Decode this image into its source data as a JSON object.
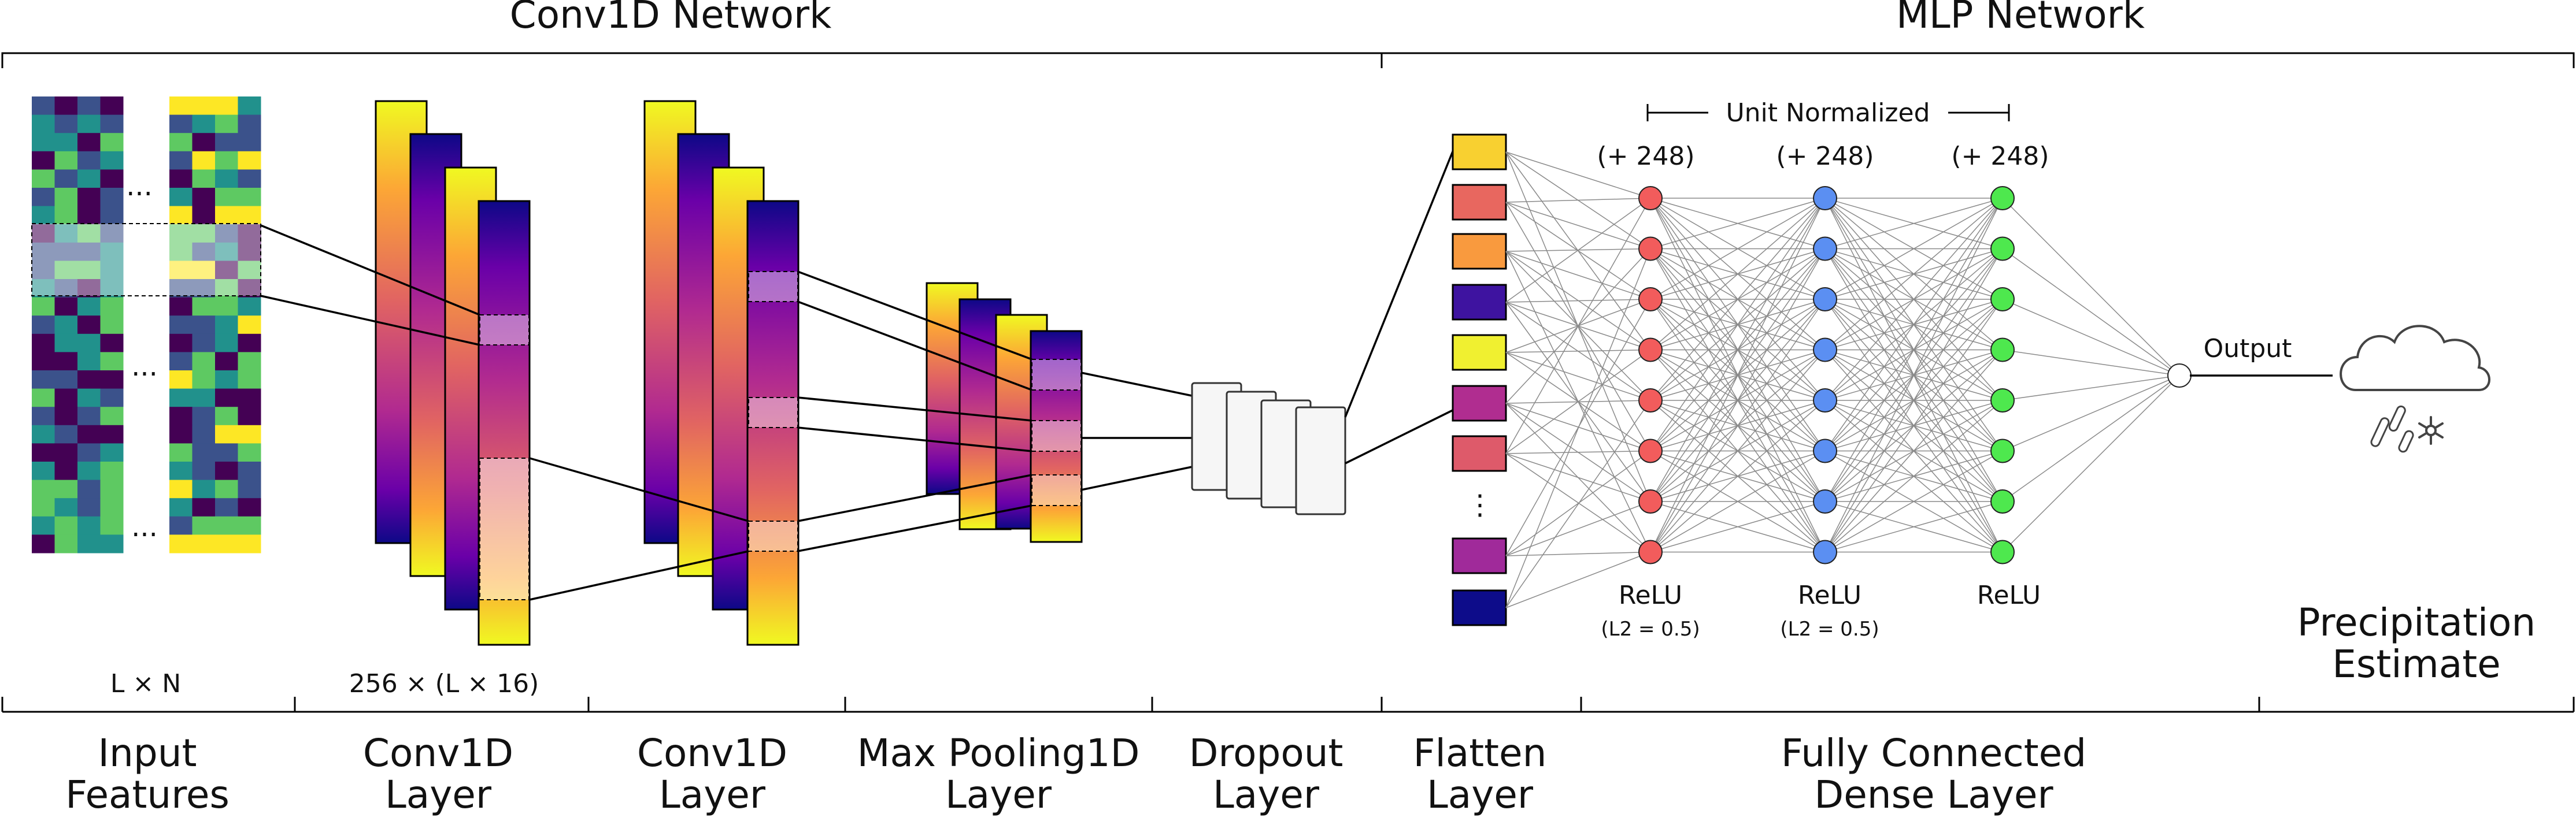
{
  "sections": {
    "conv": "Conv1D Network",
    "mlp": "MLP Network"
  },
  "input_dims": "L × N",
  "conv_dims": "256 × (L × 16)",
  "ellipsis": "...",
  "vdots": "⋮",
  "unit_normalized": "Unit Normalized",
  "dense_units": [
    "(+ 248)",
    "(+ 248)",
    "(+ 248)"
  ],
  "activations": [
    {
      "name": "ReLU",
      "reg": "(L2 = 0.5)"
    },
    {
      "name": "ReLU",
      "reg": "(L2 = 0.5)"
    },
    {
      "name": "ReLU",
      "reg": ""
    }
  ],
  "output_label": "Output",
  "result": {
    "line1": "Precipitation",
    "line2": "Estimate"
  },
  "layers": [
    {
      "line1": "Input",
      "line2": "Features"
    },
    {
      "line1": "Conv1D",
      "line2": "Layer"
    },
    {
      "line1": "Conv1D",
      "line2": "Layer"
    },
    {
      "line1": "Max Pooling1D",
      "line2": "Layer"
    },
    {
      "line1": "Dropout",
      "line2": "Layer"
    },
    {
      "line1": "Flatten",
      "line2": "Layer"
    },
    {
      "line1": "Fully Connected",
      "line2": "Dense Layer"
    }
  ],
  "colors": {
    "relu1": "#f25c5c",
    "relu2": "#5b8ff2",
    "relu3": "#4ee84e",
    "plasma": [
      "#0d0887",
      "#6a00a8",
      "#b12a90",
      "#e16462",
      "#fca636",
      "#f0f921"
    ],
    "flatten": [
      "#f8d030",
      "#e8675f",
      "#f99a3e",
      "#3e13a0",
      "#f0f030",
      "#b02d90",
      "#de5a6a",
      "#a02a9a",
      "#0d0c8a"
    ],
    "viridis": [
      "#440154",
      "#3b528b",
      "#21918c",
      "#5ec962",
      "#fde725"
    ]
  }
}
